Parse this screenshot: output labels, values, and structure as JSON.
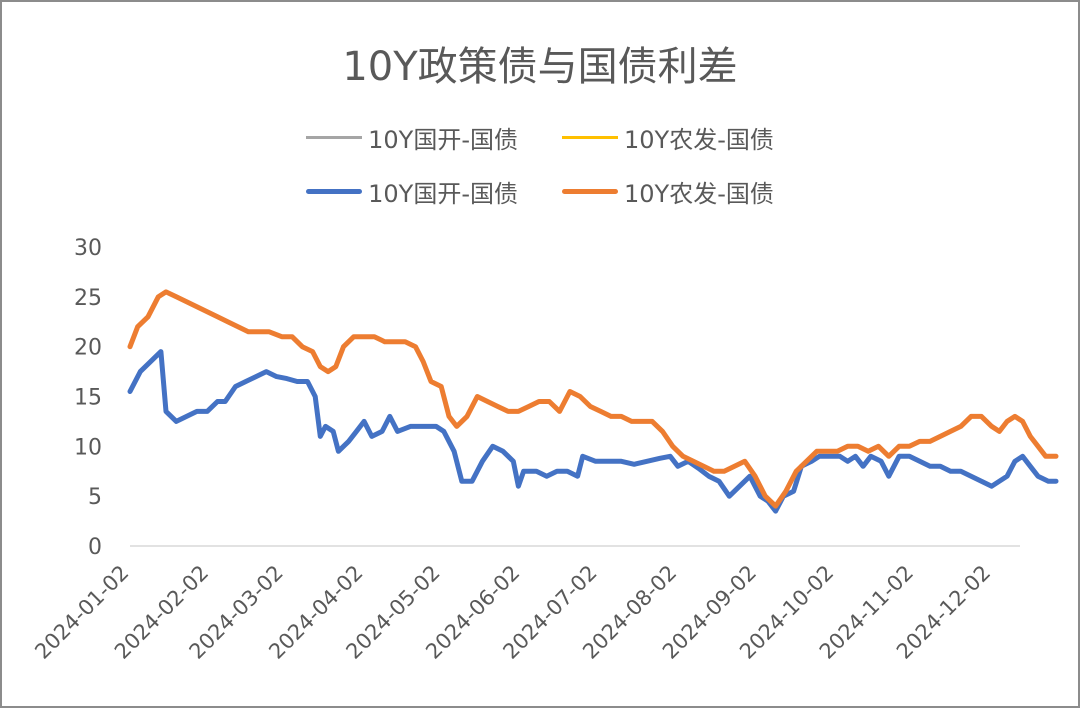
{
  "chart_data": {
    "type": "line",
    "title": "10Y政策债与国债利差",
    "ylim": [
      0,
      30
    ],
    "yticks": [
      0,
      5,
      10,
      15,
      20,
      25,
      30
    ],
    "grid": false,
    "legend_position": "top",
    "xlim": [
      "2024-01-02",
      "2024-12-13"
    ],
    "xticks": [
      "2024-01-02",
      "2024-02-02",
      "2024-03-02",
      "2024-04-02",
      "2024-05-02",
      "2024-06-02",
      "2024-07-02",
      "2024-08-02",
      "2024-09-02",
      "2024-10-02",
      "2024-11-02",
      "2024-12-02"
    ],
    "legend": [
      {
        "name": "10Y国开-国债",
        "color": "#a5a5a5",
        "style": "thin"
      },
      {
        "name": "10Y农发-国债",
        "color": "#ffc000",
        "style": "thin"
      },
      {
        "name": "10Y国开-国债",
        "color": "#4472c4",
        "style": "thick"
      },
      {
        "name": "10Y农发-国债",
        "color": "#ed7d31",
        "style": "thick"
      }
    ],
    "series": [
      {
        "name": "10Y国开-国债",
        "color": "#4472c4",
        "points": [
          [
            "2024-01-02",
            15.5
          ],
          [
            "2024-01-06",
            17.5
          ],
          [
            "2024-01-10",
            18.5
          ],
          [
            "2024-01-14",
            19.5
          ],
          [
            "2024-01-16",
            13.5
          ],
          [
            "2024-01-20",
            12.5
          ],
          [
            "2024-01-24",
            13
          ],
          [
            "2024-01-28",
            13.5
          ],
          [
            "2024-02-01",
            13.5
          ],
          [
            "2024-02-05",
            14.5
          ],
          [
            "2024-02-08",
            14.5
          ],
          [
            "2024-02-12",
            16
          ],
          [
            "2024-02-16",
            16.5
          ],
          [
            "2024-02-20",
            17
          ],
          [
            "2024-02-24",
            17.5
          ],
          [
            "2024-02-28",
            17
          ],
          [
            "2024-03-03",
            16.8
          ],
          [
            "2024-03-07",
            16.5
          ],
          [
            "2024-03-11",
            16.5
          ],
          [
            "2024-03-14",
            15
          ],
          [
            "2024-03-16",
            11
          ],
          [
            "2024-03-18",
            12
          ],
          [
            "2024-03-21",
            11.5
          ],
          [
            "2024-03-23",
            9.5
          ],
          [
            "2024-03-27",
            10.5
          ],
          [
            "2024-03-30",
            11.5
          ],
          [
            "2024-04-02",
            12.5
          ],
          [
            "2024-04-05",
            11
          ],
          [
            "2024-04-09",
            11.5
          ],
          [
            "2024-04-12",
            13
          ],
          [
            "2024-04-15",
            11.5
          ],
          [
            "2024-04-20",
            12
          ],
          [
            "2024-04-25",
            12
          ],
          [
            "2024-04-30",
            12
          ],
          [
            "2024-05-03",
            11.5
          ],
          [
            "2024-05-07",
            9.5
          ],
          [
            "2024-05-10",
            6.5
          ],
          [
            "2024-05-14",
            6.5
          ],
          [
            "2024-05-18",
            8.5
          ],
          [
            "2024-05-22",
            10
          ],
          [
            "2024-05-26",
            9.5
          ],
          [
            "2024-05-30",
            8.5
          ],
          [
            "2024-06-01",
            6
          ],
          [
            "2024-06-03",
            7.5
          ],
          [
            "2024-06-08",
            7.5
          ],
          [
            "2024-06-12",
            7
          ],
          [
            "2024-06-16",
            7.5
          ],
          [
            "2024-06-20",
            7.5
          ],
          [
            "2024-06-24",
            7
          ],
          [
            "2024-06-26",
            9
          ],
          [
            "2024-07-01",
            8.5
          ],
          [
            "2024-07-06",
            8.5
          ],
          [
            "2024-07-11",
            8.5
          ],
          [
            "2024-07-16",
            8.2
          ],
          [
            "2024-07-21",
            8.5
          ],
          [
            "2024-07-26",
            8.8
          ],
          [
            "2024-07-30",
            9
          ],
          [
            "2024-08-02",
            8
          ],
          [
            "2024-08-06",
            8.5
          ],
          [
            "2024-08-10",
            7.8
          ],
          [
            "2024-08-14",
            7
          ],
          [
            "2024-08-18",
            6.5
          ],
          [
            "2024-08-22",
            5
          ],
          [
            "2024-08-26",
            6
          ],
          [
            "2024-08-30",
            7
          ],
          [
            "2024-09-03",
            5
          ],
          [
            "2024-09-06",
            4.5
          ],
          [
            "2024-09-09",
            3.5
          ],
          [
            "2024-09-12",
            5
          ],
          [
            "2024-09-16",
            5.5
          ],
          [
            "2024-09-19",
            8
          ],
          [
            "2024-09-23",
            8.5
          ],
          [
            "2024-09-26",
            9
          ],
          [
            "2024-09-30",
            9
          ],
          [
            "2024-10-04",
            9
          ],
          [
            "2024-10-07",
            8.5
          ],
          [
            "2024-10-10",
            9
          ],
          [
            "2024-10-13",
            8
          ],
          [
            "2024-10-16",
            9
          ],
          [
            "2024-10-20",
            8.5
          ],
          [
            "2024-10-23",
            7
          ],
          [
            "2024-10-27",
            9
          ],
          [
            "2024-10-31",
            9
          ],
          [
            "2024-11-04",
            8.5
          ],
          [
            "2024-11-08",
            8
          ],
          [
            "2024-11-12",
            8
          ],
          [
            "2024-11-16",
            7.5
          ],
          [
            "2024-11-20",
            7.5
          ],
          [
            "2024-11-24",
            7
          ],
          [
            "2024-11-28",
            6.5
          ],
          [
            "2024-12-02",
            6
          ],
          [
            "2024-12-05",
            6.5
          ],
          [
            "2024-12-08",
            7
          ],
          [
            "2024-12-11",
            8.5
          ],
          [
            "2024-12-14",
            9
          ],
          [
            "2024-12-17",
            8
          ],
          [
            "2024-12-20",
            7
          ],
          [
            "2024-12-24",
            6.5
          ],
          [
            "2024-12-27",
            6.5
          ]
        ]
      },
      {
        "name": "10Y农发-国债",
        "color": "#ed7d31",
        "points": [
          [
            "2024-01-02",
            20
          ],
          [
            "2024-01-05",
            22
          ],
          [
            "2024-01-09",
            23
          ],
          [
            "2024-01-13",
            25
          ],
          [
            "2024-01-16",
            25.5
          ],
          [
            "2024-01-20",
            25
          ],
          [
            "2024-01-24",
            24.5
          ],
          [
            "2024-01-28",
            24
          ],
          [
            "2024-02-01",
            23.5
          ],
          [
            "2024-02-05",
            23
          ],
          [
            "2024-02-09",
            22.5
          ],
          [
            "2024-02-13",
            22
          ],
          [
            "2024-02-17",
            21.5
          ],
          [
            "2024-02-21",
            21.5
          ],
          [
            "2024-02-25",
            21.5
          ],
          [
            "2024-03-01",
            21
          ],
          [
            "2024-03-05",
            21
          ],
          [
            "2024-03-09",
            20
          ],
          [
            "2024-03-13",
            19.5
          ],
          [
            "2024-03-16",
            18
          ],
          [
            "2024-03-19",
            17.5
          ],
          [
            "2024-03-22",
            18
          ],
          [
            "2024-03-25",
            20
          ],
          [
            "2024-03-29",
            21
          ],
          [
            "2024-04-02",
            21
          ],
          [
            "2024-04-06",
            21
          ],
          [
            "2024-04-10",
            20.5
          ],
          [
            "2024-04-14",
            20.5
          ],
          [
            "2024-04-18",
            20.5
          ],
          [
            "2024-04-22",
            20
          ],
          [
            "2024-04-25",
            18.5
          ],
          [
            "2024-04-28",
            16.5
          ],
          [
            "2024-05-02",
            16
          ],
          [
            "2024-05-05",
            13
          ],
          [
            "2024-05-08",
            12
          ],
          [
            "2024-05-12",
            13
          ],
          [
            "2024-05-16",
            15
          ],
          [
            "2024-05-20",
            14.5
          ],
          [
            "2024-05-24",
            14
          ],
          [
            "2024-05-28",
            13.5
          ],
          [
            "2024-06-01",
            13.5
          ],
          [
            "2024-06-05",
            14
          ],
          [
            "2024-06-09",
            14.5
          ],
          [
            "2024-06-13",
            14.5
          ],
          [
            "2024-06-17",
            13.5
          ],
          [
            "2024-06-21",
            15.5
          ],
          [
            "2024-06-25",
            15
          ],
          [
            "2024-06-29",
            14
          ],
          [
            "2024-07-03",
            13.5
          ],
          [
            "2024-07-07",
            13
          ],
          [
            "2024-07-11",
            13
          ],
          [
            "2024-07-15",
            12.5
          ],
          [
            "2024-07-19",
            12.5
          ],
          [
            "2024-07-23",
            12.5
          ],
          [
            "2024-07-27",
            11.5
          ],
          [
            "2024-07-31",
            10
          ],
          [
            "2024-08-04",
            9
          ],
          [
            "2024-08-08",
            8.5
          ],
          [
            "2024-08-12",
            8
          ],
          [
            "2024-08-16",
            7.5
          ],
          [
            "2024-08-20",
            7.5
          ],
          [
            "2024-08-24",
            8
          ],
          [
            "2024-08-28",
            8.5
          ],
          [
            "2024-09-01",
            7
          ],
          [
            "2024-09-05",
            5
          ],
          [
            "2024-09-09",
            4
          ],
          [
            "2024-09-13",
            5.5
          ],
          [
            "2024-09-17",
            7.5
          ],
          [
            "2024-09-21",
            8.5
          ],
          [
            "2024-09-25",
            9.5
          ],
          [
            "2024-09-29",
            9.5
          ],
          [
            "2024-10-03",
            9.5
          ],
          [
            "2024-10-07",
            10
          ],
          [
            "2024-10-11",
            10
          ],
          [
            "2024-10-15",
            9.5
          ],
          [
            "2024-10-19",
            10
          ],
          [
            "2024-10-23",
            9
          ],
          [
            "2024-10-27",
            10
          ],
          [
            "2024-10-31",
            10
          ],
          [
            "2024-11-04",
            10.5
          ],
          [
            "2024-11-08",
            10.5
          ],
          [
            "2024-11-12",
            11
          ],
          [
            "2024-11-16",
            11.5
          ],
          [
            "2024-11-20",
            12
          ],
          [
            "2024-11-24",
            13
          ],
          [
            "2024-11-28",
            13
          ],
          [
            "2024-12-02",
            12
          ],
          [
            "2024-12-05",
            11.5
          ],
          [
            "2024-12-08",
            12.5
          ],
          [
            "2024-12-11",
            13
          ],
          [
            "2024-12-14",
            12.5
          ],
          [
            "2024-12-17",
            11
          ],
          [
            "2024-12-20",
            10
          ],
          [
            "2024-12-23",
            9
          ],
          [
            "2024-12-27",
            9
          ]
        ]
      }
    ]
  }
}
